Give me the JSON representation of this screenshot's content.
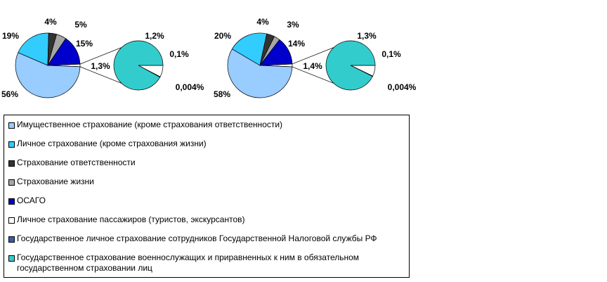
{
  "legend": [
    {
      "name": "Имущественное страхование (кроме страхования ответственности)",
      "color": "#99ccff"
    },
    {
      "name": "Личное страхование (кроме страхования жизни)",
      "color": "#33ccff"
    },
    {
      "name": "Страхование ответственности",
      "color": "#333333"
    },
    {
      "name": "Страхование жизни",
      "color": "#a6a6a6"
    },
    {
      "name": "ОСАГО",
      "color": "#0000cc"
    },
    {
      "name": "Личное страхование пассажиров (туристов, экскурсантов)",
      "color": "#ffffff"
    },
    {
      "name": "Государственное личное страхование сотрудников Государственной Налоговой службы РФ",
      "color": "#2f5fb0"
    },
    {
      "name": "Государственное страхование военнослужащих и приравненных к ним в обязательном государственном страховании лиц",
      "color": "#33cccc"
    }
  ],
  "chart_data": [
    {
      "type": "pie-of-pie",
      "values": [
        56,
        19,
        4,
        5,
        15
      ],
      "value_labels": [
        "56%",
        "19%",
        "4%",
        "5%",
        "15%"
      ],
      "other_value": 1.3,
      "other_label": "1,3%",
      "secondary_values": [
        0.1,
        0.004,
        1.2
      ],
      "secondary_labels": [
        "0,1%",
        "0,004%",
        "1,2%"
      ]
    },
    {
      "type": "pie-of-pie",
      "values": [
        58,
        20,
        4,
        3,
        14
      ],
      "value_labels": [
        "58%",
        "20%",
        "4%",
        "3%",
        "14%"
      ],
      "other_value": 1.4,
      "other_label": "1,4%",
      "secondary_values": [
        0.1,
        0.004,
        1.3
      ],
      "secondary_labels": [
        "0,1%",
        "0,004%",
        "1,3%"
      ]
    }
  ]
}
